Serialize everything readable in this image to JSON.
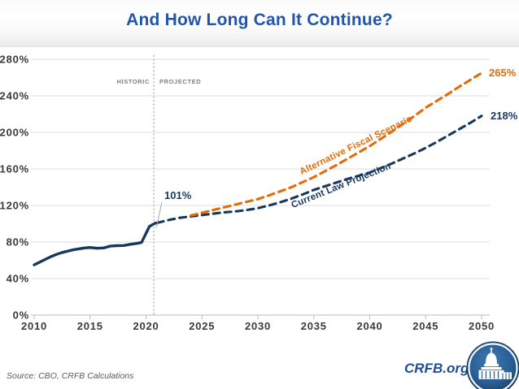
{
  "title": "And How Long Can It Continue?",
  "chart_data": {
    "type": "line",
    "title": "And How Long Can It Continue?",
    "xlabel": "",
    "ylabel": "",
    "xlim": [
      2010,
      2050
    ],
    "ylim": [
      0,
      280
    ],
    "grid": true,
    "x_ticks": [
      2010,
      2015,
      2020,
      2025,
      2030,
      2035,
      2040,
      2045,
      2050
    ],
    "y_tick_values": [
      0,
      40,
      80,
      120,
      160,
      200,
      240,
      280
    ],
    "y_tick_labels": [
      "0%",
      "40%",
      "80%",
      "120%",
      "160%",
      "200%",
      "240%",
      "280%"
    ],
    "separator": {
      "x": 2020.7,
      "left_label": "HISTORIC",
      "right_label": "PROJECTED"
    },
    "series": [
      {
        "name": "Historic",
        "style": "solid",
        "color": "#17375E",
        "points": [
          [
            2010,
            55
          ],
          [
            2010.5,
            58
          ],
          [
            2011,
            61
          ],
          [
            2011.5,
            64
          ],
          [
            2012,
            66.5
          ],
          [
            2012.5,
            68.5
          ],
          [
            2013,
            70
          ],
          [
            2013.5,
            71.5
          ],
          [
            2014,
            72.5
          ],
          [
            2014.5,
            73.5
          ],
          [
            2015,
            74
          ],
          [
            2015.6,
            73.2
          ],
          [
            2016.2,
            73.5
          ],
          [
            2016.8,
            75.5
          ],
          [
            2017.4,
            76
          ],
          [
            2018,
            76.2
          ],
          [
            2018.6,
            77.5
          ],
          [
            2019.2,
            78.5
          ],
          [
            2019.6,
            79.5
          ],
          [
            2020.3,
            97
          ],
          [
            2020.8,
            100.5
          ],
          [
            2021,
            101
          ]
        ]
      },
      {
        "name": "Current Law Projection",
        "style": "dashed",
        "color": "#17375E",
        "end_label": "218%",
        "points": [
          [
            2021,
            101
          ],
          [
            2022,
            104
          ],
          [
            2023,
            106.5
          ],
          [
            2024,
            108
          ],
          [
            2025,
            109.5
          ],
          [
            2026,
            111
          ],
          [
            2027,
            112.5
          ],
          [
            2028,
            113.5
          ],
          [
            2029,
            115
          ],
          [
            2030,
            117
          ],
          [
            2031,
            120
          ],
          [
            2032,
            123.5
          ],
          [
            2033,
            127.5
          ],
          [
            2034,
            132
          ],
          [
            2035,
            137
          ],
          [
            2036,
            141
          ],
          [
            2037,
            145
          ],
          [
            2038,
            149
          ],
          [
            2039,
            152.5
          ],
          [
            2040,
            156
          ],
          [
            2041,
            161
          ],
          [
            2042,
            166
          ],
          [
            2043,
            171.5
          ],
          [
            2044,
            177
          ],
          [
            2045,
            183
          ],
          [
            2046,
            189.5
          ],
          [
            2047,
            196.5
          ],
          [
            2048,
            203.5
          ],
          [
            2049,
            210.5
          ],
          [
            2050,
            218
          ]
        ]
      },
      {
        "name": "Alternative Fiscal Scenario",
        "style": "dashed",
        "color": "#E36C09",
        "end_label": "265%",
        "points": [
          [
            2024,
            109
          ],
          [
            2025,
            112
          ],
          [
            2026,
            115
          ],
          [
            2027,
            118
          ],
          [
            2028,
            121
          ],
          [
            2029,
            124
          ],
          [
            2030,
            127
          ],
          [
            2031,
            131
          ],
          [
            2032,
            135.5
          ],
          [
            2033,
            140
          ],
          [
            2034,
            145.5
          ],
          [
            2035,
            151
          ],
          [
            2036,
            157.5
          ],
          [
            2037,
            164
          ],
          [
            2038,
            171
          ],
          [
            2039,
            178
          ],
          [
            2040,
            185
          ],
          [
            2041,
            193
          ],
          [
            2042,
            201
          ],
          [
            2043,
            209.5
          ],
          [
            2044,
            218
          ],
          [
            2045,
            227
          ],
          [
            2046,
            234.5
          ],
          [
            2047,
            242
          ],
          [
            2048,
            250
          ],
          [
            2049,
            257.5
          ],
          [
            2050,
            265
          ]
        ]
      }
    ],
    "annotations": {
      "start_value": "101%"
    }
  },
  "footer": {
    "source": "Source: CBO, CRFB Calculations",
    "brand": "CRFB.org",
    "logo_icon": "capitol-icon"
  },
  "colors": {
    "navy": "#17375E",
    "orange": "#E36C09",
    "title_blue": "#2155A8",
    "gridline": "#dcdcdc",
    "axis": "#b9b9b9",
    "phase_gray": "#7f7f7f"
  }
}
